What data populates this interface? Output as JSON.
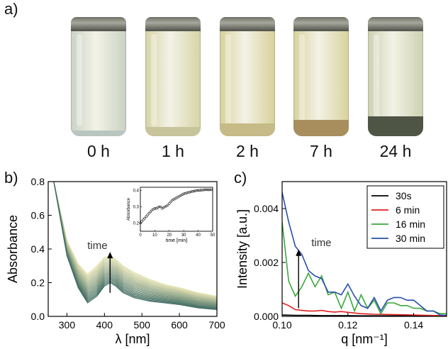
{
  "panels": {
    "a": {
      "label": "a)",
      "vials": [
        {
          "time": "0 h",
          "color": "#c9d2c4",
          "sediment": "#b9c6c0"
        },
        {
          "time": "1 h",
          "color": "#d6d4a6",
          "sediment": "#c7c39a"
        },
        {
          "time": "2 h",
          "color": "#d8d09a",
          "sediment": "#c6ba86"
        },
        {
          "time": "7 h",
          "color": "#d8d29c",
          "sediment": "#a78e5c"
        },
        {
          "time": "24 h",
          "color": "#cdd1b1",
          "sediment": "#4f5545"
        }
      ]
    },
    "b": {
      "label": "b)"
    },
    "c": {
      "label": "c)"
    }
  },
  "chart_data": [
    {
      "type": "line",
      "xlabel": "λ [nm]",
      "ylabel": "Absorbance",
      "xlim": [
        250,
        700
      ],
      "ylim": [
        0.0,
        0.8
      ],
      "xticks": [
        "300",
        "400",
        "500",
        "600",
        "700"
      ],
      "yticks": [
        "0.0",
        "0.2",
        "0.4",
        "0.6",
        "0.8"
      ],
      "annotation": "time",
      "series_count": 24,
      "colors": {
        "early": "#3f6b62",
        "late": "#e6e3b2"
      },
      "series": [
        {
          "x": [
            265,
            300,
            330,
            355,
            380,
            400,
            415,
            430,
            450,
            480,
            520,
            560,
            600,
            650,
            700
          ],
          "values": [
            0.8,
            0.36,
            0.17,
            0.08,
            0.12,
            0.18,
            0.2,
            0.18,
            0.14,
            0.11,
            0.09,
            0.08,
            0.07,
            0.05,
            0.04
          ]
        },
        {
          "x": [
            265,
            300,
            330,
            355,
            380,
            400,
            415,
            430,
            450,
            480,
            520,
            560,
            600,
            650,
            700
          ],
          "values": [
            0.8,
            0.45,
            0.31,
            0.25,
            0.3,
            0.35,
            0.36,
            0.34,
            0.3,
            0.26,
            0.22,
            0.19,
            0.17,
            0.14,
            0.12
          ]
        }
      ],
      "inset": {
        "type": "scatter",
        "xlabel": "time [min]",
        "ylabel": "Absorbance",
        "xlim": [
          0,
          50
        ],
        "ylim": [
          0.15,
          0.42
        ],
        "xticks": [
          "0",
          "10",
          "20",
          "30",
          "40",
          "50"
        ],
        "yticks": [
          "0.2",
          "0.3",
          "0.4"
        ],
        "x": [
          0,
          1,
          2,
          3,
          4,
          5,
          6,
          7,
          8,
          9,
          10,
          11,
          12,
          13,
          14,
          15,
          16,
          17,
          18,
          19,
          20,
          21,
          22,
          23,
          24,
          25,
          26,
          27,
          28,
          29,
          30,
          31,
          32,
          33,
          34,
          35,
          36,
          37,
          38,
          39,
          40,
          41,
          42,
          43,
          44,
          45,
          46,
          47,
          48,
          49
        ],
        "values": [
          0.2,
          0.21,
          0.22,
          0.23,
          0.24,
          0.25,
          0.26,
          0.27,
          0.28,
          0.285,
          0.29,
          0.29,
          0.295,
          0.3,
          0.3,
          0.29,
          0.295,
          0.3,
          0.305,
          0.31,
          0.32,
          0.33,
          0.34,
          0.345,
          0.35,
          0.355,
          0.36,
          0.365,
          0.37,
          0.375,
          0.38,
          0.382,
          0.385,
          0.388,
          0.39,
          0.392,
          0.395,
          0.396,
          0.398,
          0.4,
          0.4,
          0.401,
          0.402,
          0.403,
          0.404,
          0.405,
          0.405,
          0.404,
          0.405,
          0.405
        ]
      }
    },
    {
      "type": "line",
      "xlabel": "q [nm⁻¹]",
      "ylabel": "Intensity [a.u.]",
      "xlim": [
        0.1,
        0.15
      ],
      "ylim": [
        0.0,
        0.005
      ],
      "xticks": [
        "0.10",
        "0.12",
        "0.14"
      ],
      "yticks": [
        "0.000",
        "0.002",
        "0.004"
      ],
      "annotation": "time",
      "legend": "top-right",
      "series": [
        {
          "name": "30s",
          "color": "#000000",
          "x": [
            0.1,
            0.104,
            0.108,
            0.112,
            0.116,
            0.12,
            0.124,
            0.128,
            0.132,
            0.136,
            0.14,
            0.144,
            0.148,
            0.15
          ],
          "values": [
            5e-05,
            4e-05,
            4e-05,
            3e-05,
            3e-05,
            3e-05,
            2e-05,
            2e-05,
            2e-05,
            2e-05,
            2e-05,
            2e-05,
            1e-05,
            1e-05
          ]
        },
        {
          "name": "6 min",
          "color": "#e02020",
          "x": [
            0.1,
            0.102,
            0.104,
            0.106,
            0.108,
            0.11,
            0.112,
            0.114,
            0.116,
            0.118,
            0.12,
            0.124,
            0.128,
            0.132,
            0.136,
            0.14,
            0.144,
            0.148,
            0.15
          ],
          "values": [
            0.0005,
            0.0004,
            0.00025,
            0.00022,
            0.0002,
            0.0002,
            0.00022,
            0.00018,
            0.00016,
            0.00018,
            0.00015,
            0.0001,
            8e-05,
            7e-05,
            6e-05,
            5e-05,
            4e-05,
            3e-05,
            3e-05
          ]
        },
        {
          "name": "16 min",
          "color": "#3ca83c",
          "x": [
            0.1,
            0.102,
            0.104,
            0.106,
            0.108,
            0.11,
            0.112,
            0.114,
            0.116,
            0.118,
            0.12,
            0.122,
            0.124,
            0.126,
            0.128,
            0.13,
            0.132,
            0.134,
            0.136,
            0.138,
            0.14,
            0.142,
            0.144,
            0.146,
            0.148,
            0.15
          ],
          "values": [
            0.0035,
            0.0013,
            0.00075,
            0.0011,
            0.0016,
            0.0011,
            0.0015,
            0.0008,
            0.0009,
            0.0003,
            0.0009,
            0.0002,
            0.0008,
            0.0003,
            0.0006,
            0.0001,
            0.0005,
            0.0005,
            0.0004,
            0.0004,
            0.0003,
            0.0003,
            0.0002,
            0.0002,
            0.0001,
            0.0001
          ]
        },
        {
          "name": "30 min",
          "color": "#2a4fb0",
          "x": [
            0.1,
            0.102,
            0.104,
            0.106,
            0.108,
            0.11,
            0.112,
            0.114,
            0.116,
            0.118,
            0.12,
            0.122,
            0.124,
            0.126,
            0.128,
            0.13,
            0.132,
            0.134,
            0.136,
            0.138,
            0.14,
            0.142,
            0.144,
            0.146,
            0.148,
            0.15
          ],
          "values": [
            0.0046,
            0.0035,
            0.0026,
            0.0023,
            0.0017,
            0.0015,
            0.0014,
            0.0009,
            0.0009,
            0.0008,
            0.0012,
            0.00075,
            0.0004,
            0.0003,
            0.0007,
            0.0002,
            0.0006,
            0.0007,
            0.0007,
            0.0006,
            0.0006,
            0.0004,
            0.0002,
            0.0002,
            5e-05,
            4e-05
          ]
        }
      ]
    }
  ]
}
